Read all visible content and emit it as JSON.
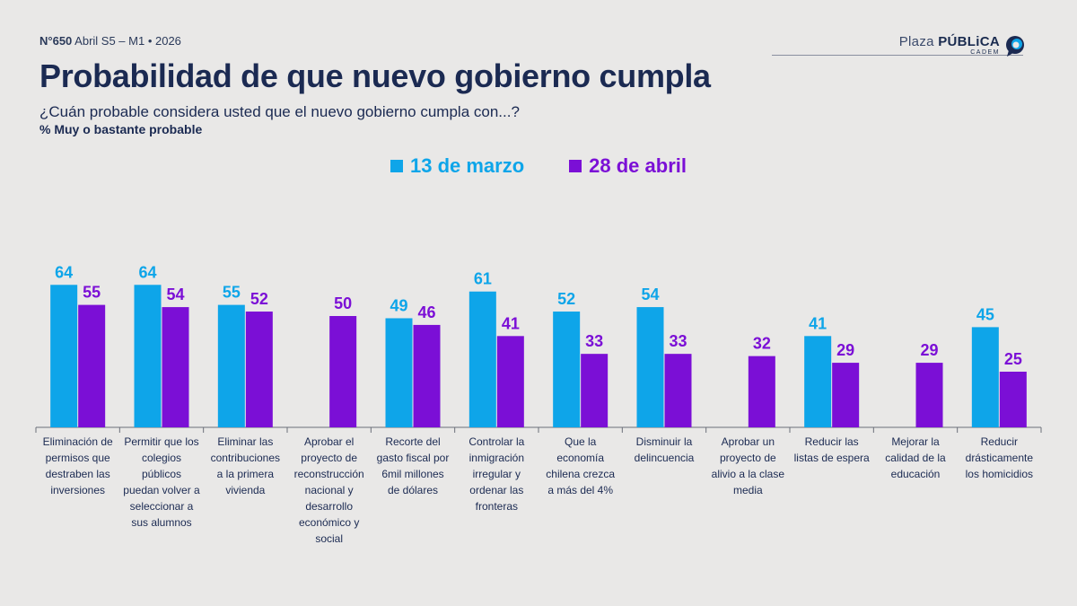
{
  "header": {
    "meta_number": "N°650",
    "meta_rest": " Abril S5 – M1 • 2026",
    "logo_left": "Plaza ",
    "logo_right": "PÚBLiCA",
    "logo_sub": "CADEM"
  },
  "title": "Probabilidad de que nuevo gobierno cumpla",
  "subtitle": "¿Cuán probable considera usted que el nuevo gobierno cumpla con...?",
  "measure": "% Muy o bastante probable",
  "colors": {
    "series1": "#0ea5e9",
    "series2": "#7b0fd6",
    "background": "#e9e8e7",
    "title": "#1b2a52"
  },
  "chart_data": {
    "type": "bar",
    "ylim": [
      0,
      70
    ],
    "grid": false,
    "legend_position": "top-center",
    "categories": [
      [
        "Eliminación de",
        "permisos que",
        "destraben las",
        "inversiones"
      ],
      [
        "Permitir que los",
        "colegios",
        "públicos",
        "puedan volver a",
        "seleccionar a",
        "sus alumnos"
      ],
      [
        "Eliminar las",
        "contribuciones",
        "a la primera",
        "vivienda"
      ],
      [
        "Aprobar el",
        "proyecto de",
        "reconstrucción",
        "nacional y",
        "desarrollo",
        "económico y",
        "social"
      ],
      [
        "Recorte del",
        "gasto fiscal por",
        "6mil millones",
        "de dólares"
      ],
      [
        "Controlar la",
        "inmigración",
        "irregular y",
        "ordenar las",
        "fronteras"
      ],
      [
        "Que la",
        "economía",
        "chilena crezca",
        "a más del 4%"
      ],
      [
        "Disminuir la",
        "delincuencia"
      ],
      [
        "Aprobar un",
        "proyecto de",
        "alivio a la clase",
        "media"
      ],
      [
        "Reducir las",
        "listas de espera"
      ],
      [
        "Mejorar la",
        "calidad de la",
        "educación"
      ],
      [
        "Reducir",
        "drásticamente",
        "los homicidios"
      ]
    ],
    "series": [
      {
        "name": "13 de marzo",
        "values": [
          64,
          64,
          55,
          null,
          49,
          61,
          52,
          54,
          null,
          41,
          null,
          45
        ]
      },
      {
        "name": "28 de abril",
        "values": [
          55,
          54,
          52,
          50,
          46,
          41,
          33,
          33,
          32,
          29,
          29,
          25
        ]
      }
    ]
  }
}
